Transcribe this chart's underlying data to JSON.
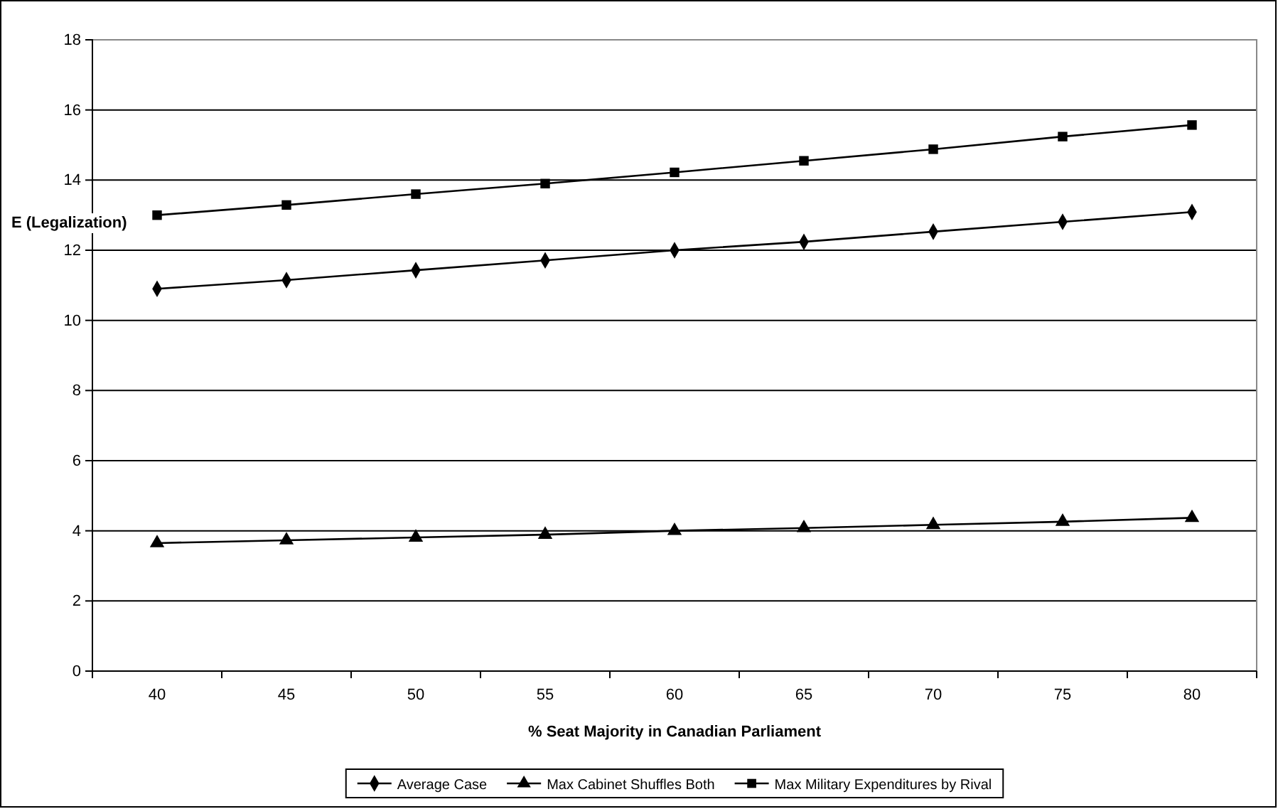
{
  "chart_data": {
    "type": "line",
    "xlabel": "% Seat Majority in Canadian Parliament",
    "ylabel": "E (Legalization)",
    "categories": [
      "40",
      "45",
      "50",
      "55",
      "60",
      "65",
      "70",
      "75",
      "80"
    ],
    "series": [
      {
        "name": "Average Case",
        "color": "#000000",
        "marker": "diamond",
        "values": [
          10.9,
          11.15,
          11.43,
          11.71,
          12.0,
          12.24,
          12.53,
          12.81,
          13.09
        ]
      },
      {
        "name": "Max Cabinet Shuffles Both",
        "color": "#000000",
        "marker": "triangle",
        "values": [
          3.65,
          3.73,
          3.81,
          3.89,
          4.0,
          4.08,
          4.17,
          4.26,
          4.37
        ]
      },
      {
        "name": "Max Military Expenditures by Rival",
        "color": "#000000",
        "marker": "square",
        "values": [
          13.0,
          13.29,
          13.6,
          13.9,
          14.22,
          14.55,
          14.88,
          15.24,
          15.57
        ]
      }
    ],
    "ylim": [
      0,
      18
    ],
    "yticks": [
      0,
      2,
      4,
      6,
      8,
      10,
      12,
      14,
      16,
      18
    ],
    "grid": "y",
    "legend": "bottom",
    "line_style": "solid"
  }
}
